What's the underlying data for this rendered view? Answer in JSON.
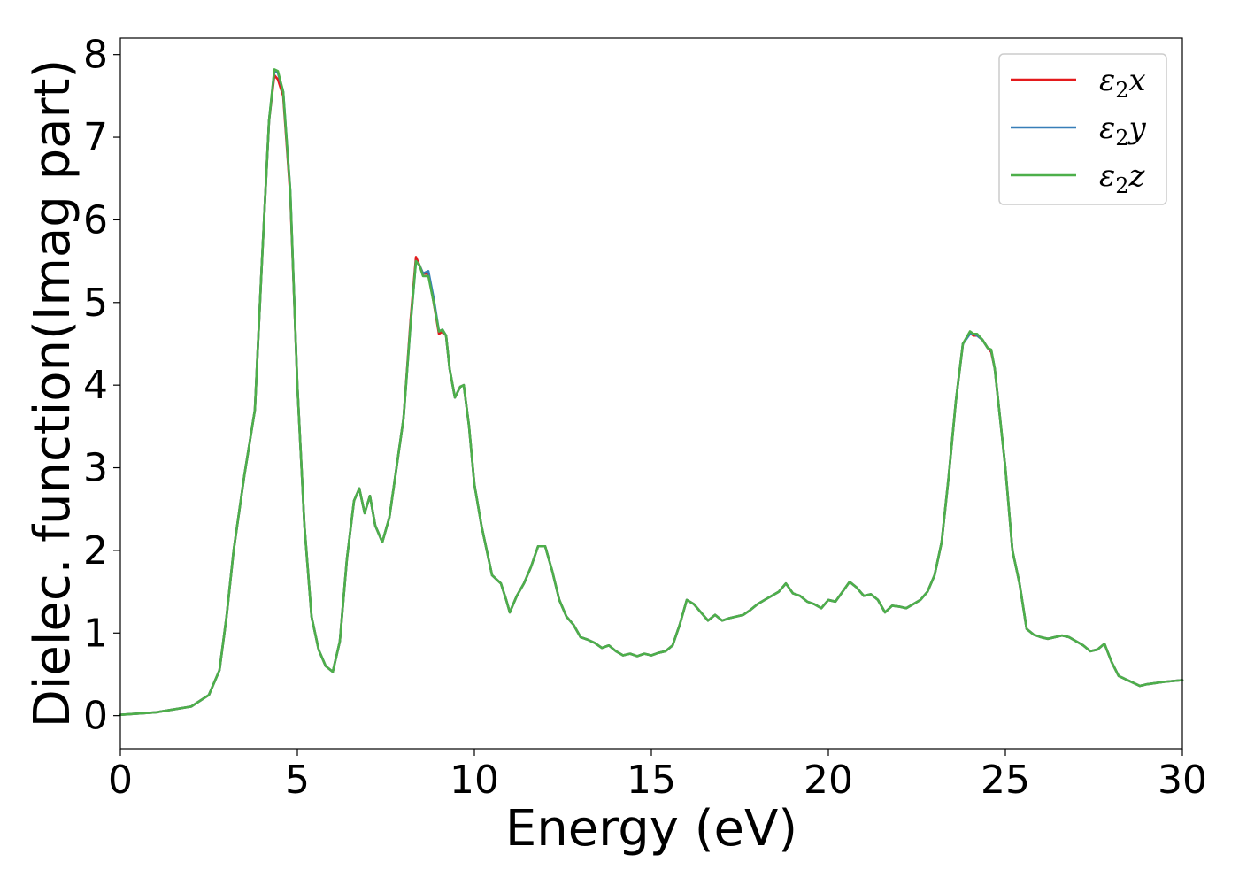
{
  "chart_data": {
    "type": "line",
    "title": "",
    "xlabel": "Energy (eV)",
    "ylabel": "Dielec. function(Imag part)",
    "xlim": [
      0,
      30
    ],
    "ylim": [
      -0.4,
      8.2
    ],
    "xticks": [
      0,
      5,
      10,
      15,
      20,
      25,
      30
    ],
    "yticks": [
      0,
      1,
      2,
      3,
      4,
      5,
      6,
      7,
      8
    ],
    "grid": false,
    "legend_position": "top-right",
    "series": [
      {
        "name": "ε₂x",
        "legend_main": "ε",
        "legend_sub": "2",
        "legend_tail": "x",
        "color": "#e41a1c",
        "x": [
          0,
          1,
          2,
          2.5,
          2.8,
          3,
          3.2,
          3.5,
          3.8,
          4.0,
          4.2,
          4.35,
          4.45,
          4.6,
          4.8,
          5.0,
          5.2,
          5.4,
          5.6,
          5.8,
          6.0,
          6.2,
          6.4,
          6.6,
          6.75,
          6.9,
          7.05,
          7.2,
          7.4,
          7.6,
          7.8,
          8.0,
          8.2,
          8.35,
          8.45,
          8.55,
          8.7,
          8.85,
          9.0,
          9.1,
          9.2,
          9.3,
          9.45,
          9.6,
          9.7,
          9.85,
          10.0,
          10.2,
          10.5,
          10.75,
          10.9,
          11.0,
          11.2,
          11.4,
          11.6,
          11.8,
          12.0,
          12.2,
          12.4,
          12.6,
          12.8,
          13.0,
          13.2,
          13.4,
          13.6,
          13.8,
          14.0,
          14.2,
          14.4,
          14.6,
          14.8,
          15.0,
          15.2,
          15.4,
          15.6,
          15.8,
          16.0,
          16.2,
          16.4,
          16.6,
          16.8,
          17.0,
          17.2,
          17.4,
          17.6,
          17.8,
          18.0,
          18.2,
          18.4,
          18.6,
          18.8,
          19.0,
          19.2,
          19.4,
          19.6,
          19.8,
          20.0,
          20.2,
          20.4,
          20.6,
          20.8,
          21.0,
          21.2,
          21.4,
          21.6,
          21.8,
          22.0,
          22.2,
          22.4,
          22.6,
          22.8,
          23.0,
          23.2,
          23.4,
          23.6,
          23.8,
          24.0,
          24.1,
          24.2,
          24.35,
          24.5,
          24.6,
          24.7,
          24.8,
          25.0,
          25.2,
          25.4,
          25.6,
          25.8,
          26.0,
          26.2,
          26.4,
          26.6,
          26.8,
          27.0,
          27.2,
          27.4,
          27.6,
          27.8,
          28.0,
          28.2,
          28.5,
          28.8,
          29.0,
          29.5,
          30.0
        ],
        "y": [
          0.01,
          0.04,
          0.11,
          0.25,
          0.55,
          1.2,
          2.0,
          2.9,
          3.7,
          5.5,
          7.2,
          7.75,
          7.7,
          7.5,
          6.3,
          4.0,
          2.3,
          1.2,
          0.8,
          0.6,
          0.53,
          0.9,
          1.9,
          2.6,
          2.75,
          2.45,
          2.66,
          2.3,
          2.1,
          2.4,
          3.0,
          3.6,
          4.8,
          5.55,
          5.45,
          5.35,
          5.35,
          5.0,
          4.62,
          4.65,
          4.6,
          4.2,
          3.85,
          3.98,
          4.0,
          3.5,
          2.8,
          2.3,
          1.7,
          1.6,
          1.4,
          1.25,
          1.45,
          1.6,
          1.8,
          2.05,
          2.05,
          1.75,
          1.4,
          1.2,
          1.1,
          0.95,
          0.92,
          0.88,
          0.82,
          0.85,
          0.78,
          0.73,
          0.75,
          0.72,
          0.75,
          0.73,
          0.76,
          0.78,
          0.85,
          1.1,
          1.4,
          1.35,
          1.25,
          1.15,
          1.22,
          1.15,
          1.18,
          1.2,
          1.22,
          1.28,
          1.35,
          1.4,
          1.45,
          1.5,
          1.6,
          1.48,
          1.45,
          1.38,
          1.35,
          1.3,
          1.4,
          1.38,
          1.5,
          1.62,
          1.55,
          1.45,
          1.47,
          1.4,
          1.25,
          1.33,
          1.32,
          1.3,
          1.35,
          1.4,
          1.5,
          1.7,
          2.1,
          2.9,
          3.8,
          4.5,
          4.63,
          4.6,
          4.6,
          4.55,
          4.45,
          4.4,
          4.2,
          3.8,
          3.0,
          2.0,
          1.6,
          1.05,
          0.98,
          0.95,
          0.93,
          0.95,
          0.97,
          0.95,
          0.9,
          0.85,
          0.78,
          0.8,
          0.87,
          0.65,
          0.48,
          0.42,
          0.36,
          0.38,
          0.41,
          0.43
        ]
      },
      {
        "name": "ε₂y",
        "legend_main": "ε",
        "legend_sub": "2",
        "legend_tail": "y",
        "color": "#377eb8",
        "x": [
          0,
          1,
          2,
          2.5,
          2.8,
          3,
          3.2,
          3.5,
          3.8,
          4.0,
          4.2,
          4.35,
          4.45,
          4.6,
          4.8,
          5.0,
          5.2,
          5.4,
          5.6,
          5.8,
          6.0,
          6.2,
          6.4,
          6.6,
          6.75,
          6.9,
          7.05,
          7.2,
          7.4,
          7.6,
          7.8,
          8.0,
          8.2,
          8.35,
          8.45,
          8.55,
          8.7,
          8.85,
          9.0,
          9.1,
          9.2,
          9.3,
          9.45,
          9.6,
          9.7,
          9.85,
          10.0,
          10.2,
          10.5,
          10.75,
          10.9,
          11.0,
          11.2,
          11.4,
          11.6,
          11.8,
          12.0,
          12.2,
          12.4,
          12.6,
          12.8,
          13.0,
          13.2,
          13.4,
          13.6,
          13.8,
          14.0,
          14.2,
          14.4,
          14.6,
          14.8,
          15.0,
          15.2,
          15.4,
          15.6,
          15.8,
          16.0,
          16.2,
          16.4,
          16.6,
          16.8,
          17.0,
          17.2,
          17.4,
          17.6,
          17.8,
          18.0,
          18.2,
          18.4,
          18.6,
          18.8,
          19.0,
          19.2,
          19.4,
          19.6,
          19.8,
          20.0,
          20.2,
          20.4,
          20.6,
          20.8,
          21.0,
          21.2,
          21.4,
          21.6,
          21.8,
          22.0,
          22.2,
          22.4,
          22.6,
          22.8,
          23.0,
          23.2,
          23.4,
          23.6,
          23.8,
          24.0,
          24.1,
          24.2,
          24.35,
          24.5,
          24.6,
          24.7,
          24.8,
          25.0,
          25.2,
          25.4,
          25.6,
          25.8,
          26.0,
          26.2,
          26.4,
          26.6,
          26.8,
          27.0,
          27.2,
          27.4,
          27.6,
          27.8,
          28.0,
          28.2,
          28.5,
          28.8,
          29.0,
          29.5,
          30.0
        ],
        "y": [
          0.01,
          0.04,
          0.11,
          0.25,
          0.55,
          1.2,
          2.0,
          2.9,
          3.7,
          5.5,
          7.2,
          7.8,
          7.78,
          7.55,
          6.35,
          4.0,
          2.3,
          1.2,
          0.8,
          0.6,
          0.53,
          0.9,
          1.9,
          2.6,
          2.75,
          2.45,
          2.66,
          2.3,
          2.1,
          2.4,
          3.0,
          3.6,
          4.75,
          5.5,
          5.45,
          5.35,
          5.38,
          5.05,
          4.65,
          4.67,
          4.6,
          4.2,
          3.85,
          3.98,
          4.0,
          3.5,
          2.8,
          2.3,
          1.7,
          1.6,
          1.4,
          1.25,
          1.45,
          1.6,
          1.8,
          2.05,
          2.05,
          1.75,
          1.4,
          1.2,
          1.1,
          0.95,
          0.92,
          0.88,
          0.82,
          0.85,
          0.78,
          0.73,
          0.75,
          0.72,
          0.75,
          0.73,
          0.76,
          0.78,
          0.85,
          1.1,
          1.4,
          1.35,
          1.25,
          1.15,
          1.22,
          1.15,
          1.18,
          1.2,
          1.22,
          1.28,
          1.35,
          1.4,
          1.45,
          1.5,
          1.6,
          1.48,
          1.45,
          1.38,
          1.35,
          1.3,
          1.4,
          1.38,
          1.5,
          1.62,
          1.55,
          1.45,
          1.47,
          1.4,
          1.25,
          1.33,
          1.32,
          1.3,
          1.35,
          1.4,
          1.5,
          1.7,
          2.1,
          2.9,
          3.8,
          4.5,
          4.62,
          4.62,
          4.6,
          4.55,
          4.45,
          4.42,
          4.2,
          3.8,
          3.0,
          2.0,
          1.6,
          1.05,
          0.98,
          0.95,
          0.93,
          0.95,
          0.97,
          0.95,
          0.9,
          0.85,
          0.78,
          0.8,
          0.87,
          0.65,
          0.48,
          0.42,
          0.36,
          0.38,
          0.41,
          0.43
        ]
      },
      {
        "name": "ε₂z",
        "legend_main": "ε",
        "legend_sub": "2",
        "legend_tail": "z",
        "color": "#4daf4a",
        "x": [
          0,
          1,
          2,
          2.5,
          2.8,
          3,
          3.2,
          3.5,
          3.8,
          4.0,
          4.2,
          4.35,
          4.45,
          4.6,
          4.8,
          5.0,
          5.2,
          5.4,
          5.6,
          5.8,
          6.0,
          6.2,
          6.4,
          6.6,
          6.75,
          6.9,
          7.05,
          7.2,
          7.4,
          7.6,
          7.8,
          8.0,
          8.2,
          8.35,
          8.45,
          8.55,
          8.7,
          8.85,
          9.0,
          9.1,
          9.2,
          9.3,
          9.45,
          9.6,
          9.7,
          9.85,
          10.0,
          10.2,
          10.5,
          10.75,
          10.9,
          11.0,
          11.2,
          11.4,
          11.6,
          11.8,
          12.0,
          12.2,
          12.4,
          12.6,
          12.8,
          13.0,
          13.2,
          13.4,
          13.6,
          13.8,
          14.0,
          14.2,
          14.4,
          14.6,
          14.8,
          15.0,
          15.2,
          15.4,
          15.6,
          15.8,
          16.0,
          16.2,
          16.4,
          16.6,
          16.8,
          17.0,
          17.2,
          17.4,
          17.6,
          17.8,
          18.0,
          18.2,
          18.4,
          18.6,
          18.8,
          19.0,
          19.2,
          19.4,
          19.6,
          19.8,
          20.0,
          20.2,
          20.4,
          20.6,
          20.8,
          21.0,
          21.2,
          21.4,
          21.6,
          21.8,
          22.0,
          22.2,
          22.4,
          22.6,
          22.8,
          23.0,
          23.2,
          23.4,
          23.6,
          23.8,
          24.0,
          24.1,
          24.2,
          24.35,
          24.5,
          24.6,
          24.7,
          24.8,
          25.0,
          25.2,
          25.4,
          25.6,
          25.8,
          26.0,
          26.2,
          26.4,
          26.6,
          26.8,
          27.0,
          27.2,
          27.4,
          27.6,
          27.8,
          28.0,
          28.2,
          28.5,
          28.8,
          29.0,
          29.5,
          30.0
        ],
        "y": [
          0.01,
          0.04,
          0.11,
          0.25,
          0.55,
          1.2,
          2.0,
          2.9,
          3.7,
          5.5,
          7.2,
          7.82,
          7.8,
          7.55,
          6.35,
          4.0,
          2.3,
          1.2,
          0.8,
          0.6,
          0.53,
          0.9,
          1.9,
          2.6,
          2.75,
          2.45,
          2.66,
          2.3,
          2.1,
          2.4,
          3.0,
          3.6,
          4.75,
          5.5,
          5.45,
          5.32,
          5.32,
          5.0,
          4.65,
          4.67,
          4.6,
          4.2,
          3.85,
          3.98,
          4.0,
          3.5,
          2.8,
          2.3,
          1.7,
          1.6,
          1.4,
          1.25,
          1.45,
          1.6,
          1.8,
          2.05,
          2.05,
          1.75,
          1.4,
          1.2,
          1.1,
          0.95,
          0.92,
          0.88,
          0.82,
          0.85,
          0.78,
          0.73,
          0.75,
          0.72,
          0.75,
          0.73,
          0.76,
          0.78,
          0.85,
          1.1,
          1.4,
          1.35,
          1.25,
          1.15,
          1.22,
          1.15,
          1.18,
          1.2,
          1.22,
          1.28,
          1.35,
          1.4,
          1.45,
          1.5,
          1.6,
          1.48,
          1.45,
          1.38,
          1.35,
          1.3,
          1.4,
          1.38,
          1.5,
          1.62,
          1.55,
          1.45,
          1.47,
          1.4,
          1.25,
          1.33,
          1.32,
          1.3,
          1.35,
          1.4,
          1.5,
          1.7,
          2.1,
          2.9,
          3.8,
          4.5,
          4.65,
          4.62,
          4.62,
          4.55,
          4.45,
          4.43,
          4.2,
          3.8,
          3.0,
          2.0,
          1.6,
          1.05,
          0.98,
          0.95,
          0.93,
          0.95,
          0.97,
          0.95,
          0.9,
          0.85,
          0.78,
          0.8,
          0.87,
          0.65,
          0.48,
          0.42,
          0.36,
          0.38,
          0.41,
          0.43
        ]
      }
    ]
  }
}
